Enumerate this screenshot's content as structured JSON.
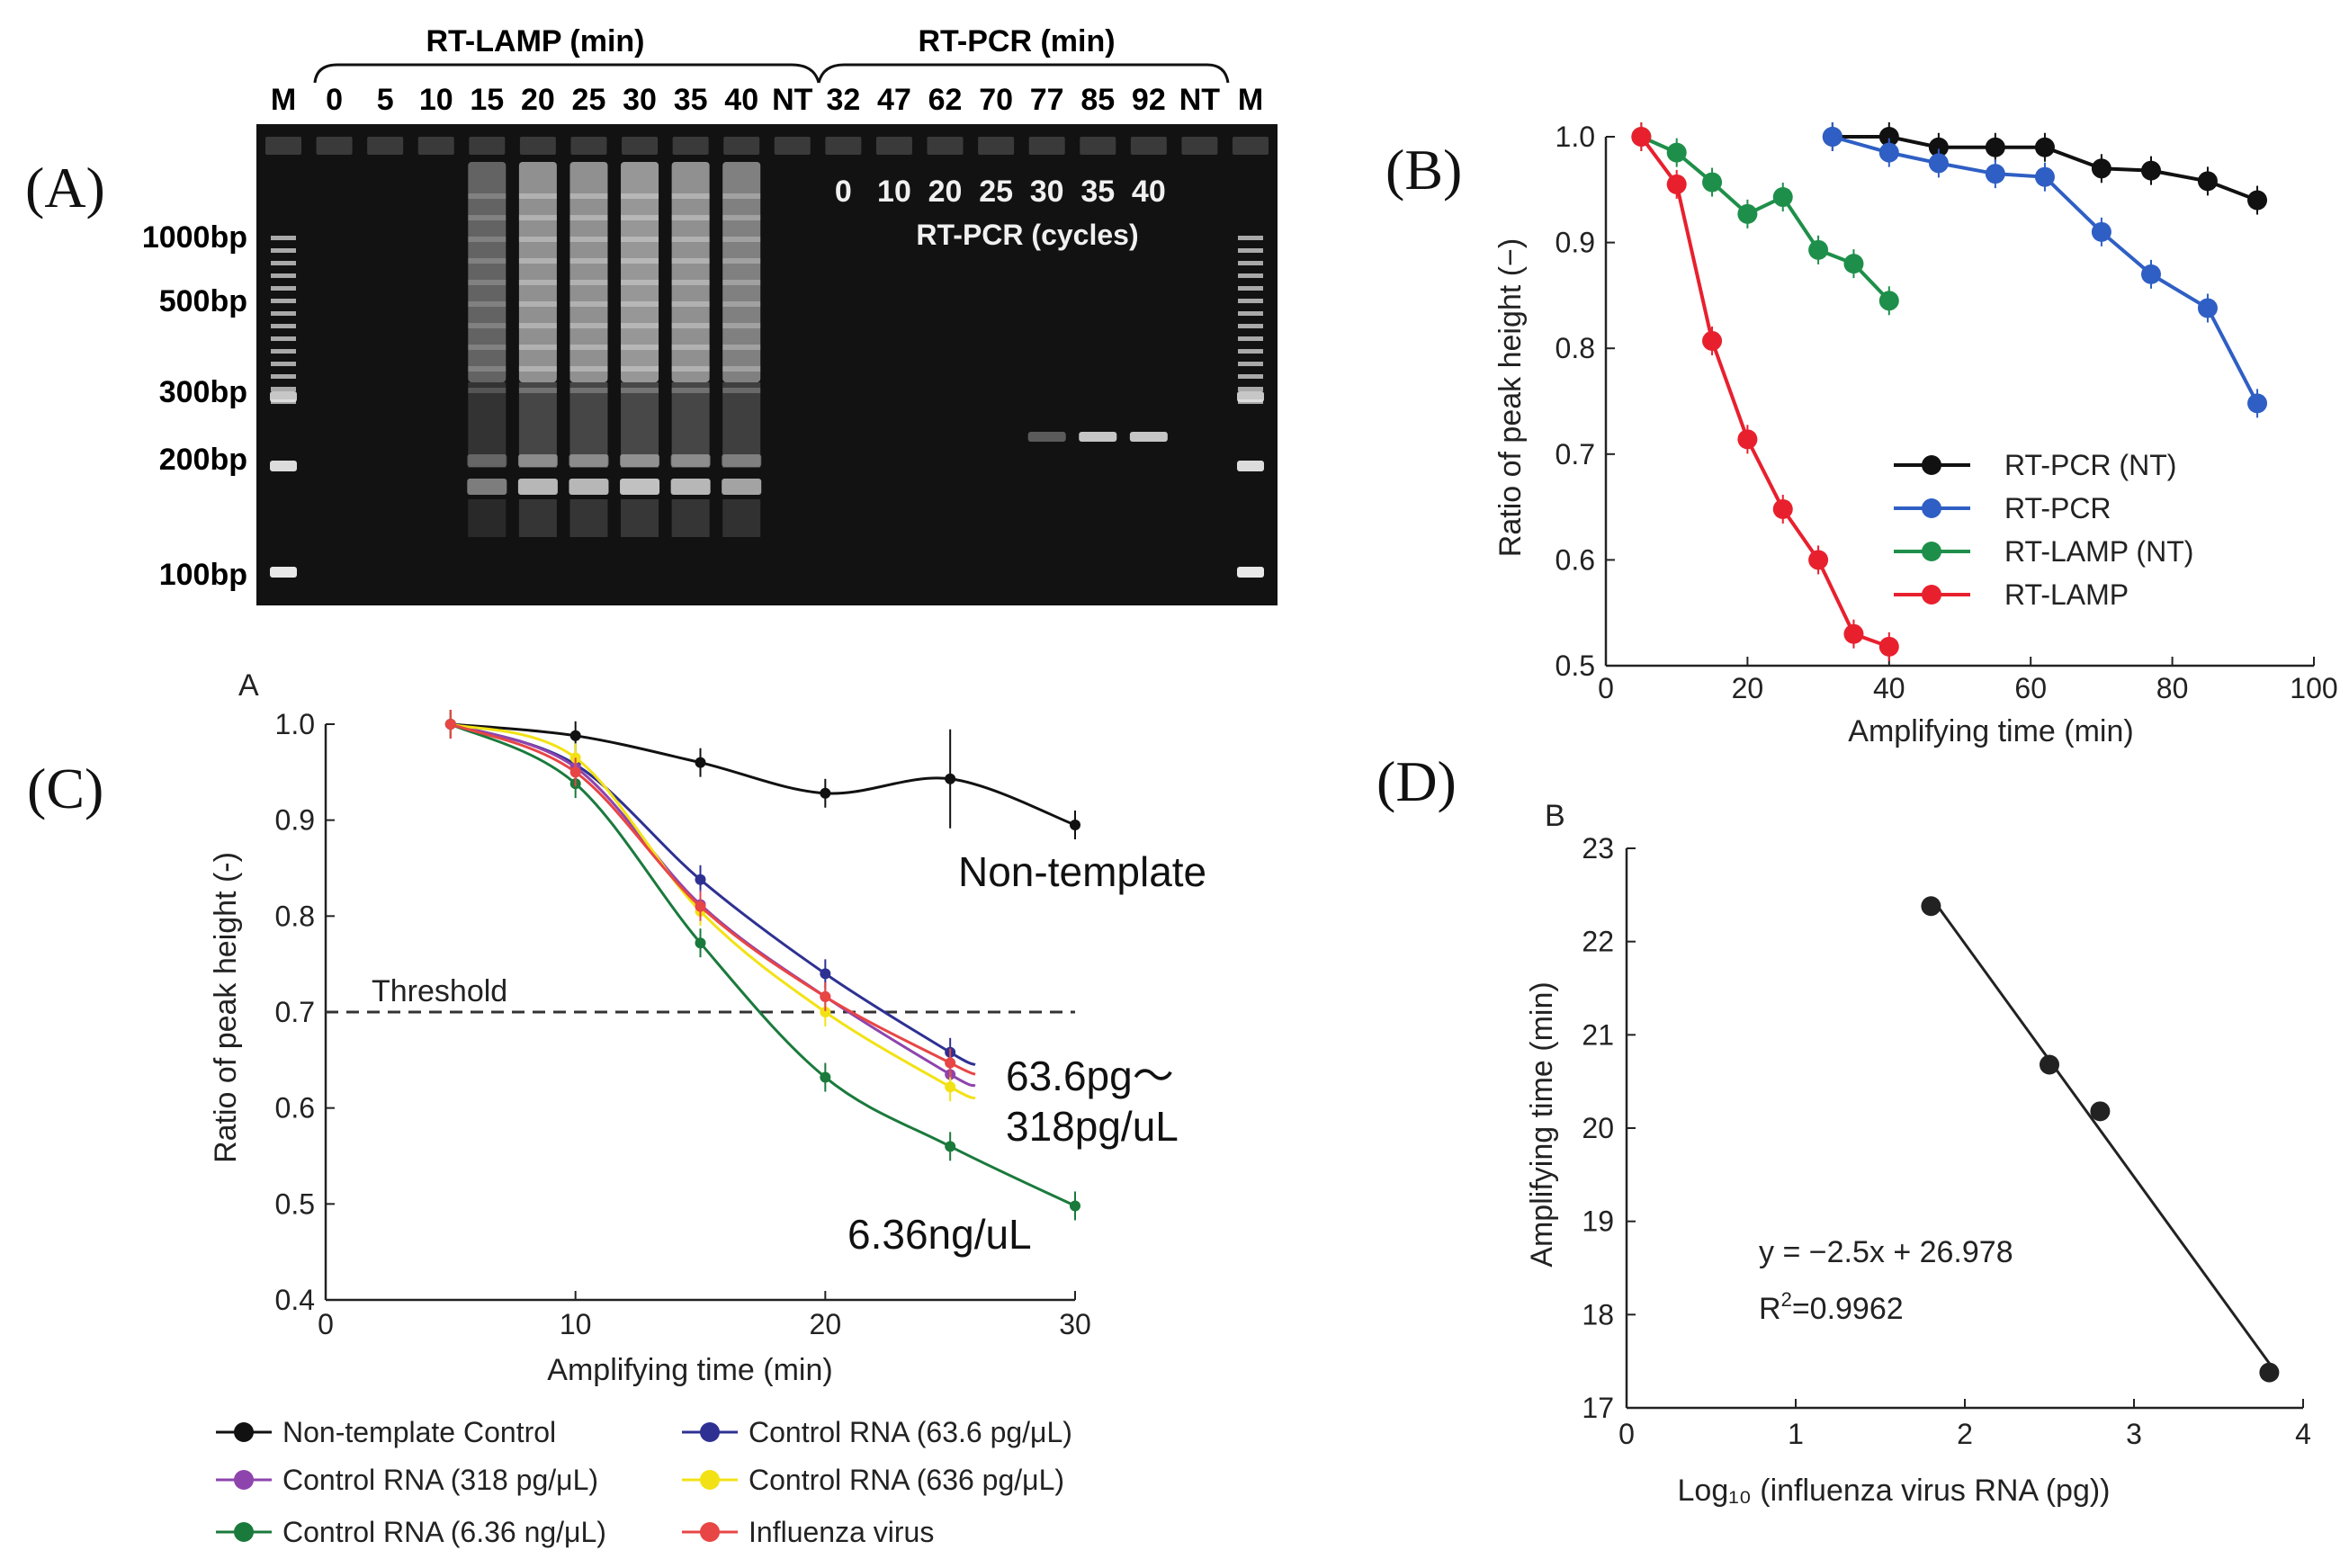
{
  "panel_labels": [
    "(A)",
    "(B)",
    "(C)",
    "(D)"
  ],
  "gel": {
    "lamp_header": "RT-LAMP (min)",
    "pcr_header": "RT-PCR (min)",
    "lanes": [
      "M",
      "0",
      "5",
      "10",
      "15",
      "20",
      "25",
      "30",
      "35",
      "40",
      "NT",
      "32",
      "47",
      "62",
      "70",
      "77",
      "85",
      "92",
      "NT",
      "M"
    ],
    "cycles": [
      "0",
      "10",
      "20",
      "25",
      "30",
      "35",
      "40"
    ],
    "cycles_label": "RT-PCR (cycles)",
    "ladder": [
      "1000bp",
      "500bp",
      "300bp",
      "200bp",
      "100bp"
    ],
    "bg_color": "#121212"
  },
  "chart_data": [
    {
      "panel": "(B)",
      "type": "line",
      "xlabel": "Amplifying time (min)",
      "ylabel": "Ratio of peak height (−)",
      "xlim": [
        0,
        100
      ],
      "ylim": [
        0.5,
        1.0
      ],
      "xticks": [
        "0",
        "20",
        "40",
        "60",
        "80",
        "100"
      ],
      "yticks": [
        "0.5",
        "0.6",
        "0.7",
        "0.8",
        "0.9",
        "1.0"
      ],
      "legend_position": "bottom-right",
      "series": [
        {
          "name": "RT-PCR (NT)",
          "color": "#111111",
          "x": [
            32,
            40,
            47,
            55,
            62,
            70,
            77,
            85,
            92
          ],
          "y": [
            1.0,
            1.0,
            0.99,
            0.99,
            0.99,
            0.97,
            0.968,
            0.958,
            0.94
          ]
        },
        {
          "name": "RT-PCR",
          "color": "#2f5fc4",
          "x": [
            32,
            40,
            47,
            55,
            62,
            70,
            77,
            85,
            92
          ],
          "y": [
            1.0,
            0.985,
            0.975,
            0.965,
            0.962,
            0.91,
            0.87,
            0.838,
            0.748
          ]
        },
        {
          "name": "RT-LAMP (NT)",
          "color": "#1e8f4a",
          "x": [
            5,
            10,
            15,
            20,
            25,
            30,
            35,
            40
          ],
          "y": [
            1.0,
            0.985,
            0.957,
            0.927,
            0.943,
            0.893,
            0.88,
            0.845
          ]
        },
        {
          "name": "RT-LAMP",
          "color": "#e8202e",
          "x": [
            5,
            10,
            15,
            20,
            25,
            30,
            35,
            40
          ],
          "y": [
            1.0,
            0.955,
            0.807,
            0.714,
            0.648,
            0.6,
            0.53,
            0.518
          ]
        }
      ]
    },
    {
      "panel": "(C)",
      "type": "line",
      "corner_label": "A",
      "xlabel": "Amplifying time (min)",
      "ylabel": "Ratio of peak height (-)",
      "xlim": [
        0,
        30
      ],
      "ylim": [
        0.4,
        1.0
      ],
      "xticks": [
        "0",
        "10",
        "20",
        "30"
      ],
      "yticks": [
        "0.4",
        "0.5",
        "0.6",
        "0.7",
        "0.8",
        "0.9",
        "1.0"
      ],
      "threshold": {
        "y": 0.7,
        "label": "Threshold"
      },
      "annotations": [
        "Non-template",
        "63.6pg～",
        "318pg/uL",
        "6.36ng/uL"
      ],
      "series": [
        {
          "name": "Non-template Control",
          "color": "#111111",
          "x": [
            5,
            10,
            15,
            20,
            25,
            30
          ],
          "y": [
            1.0,
            0.988,
            0.96,
            0.928,
            0.943,
            0.895
          ]
        },
        {
          "name": "Control RNA (63.6 pg/μL)",
          "color": "#2e3192",
          "x": [
            5,
            10,
            15,
            20,
            25,
            26
          ],
          "y": [
            1.0,
            0.958,
            0.838,
            0.74,
            0.658,
            0.645
          ]
        },
        {
          "name": "Control RNA (318 pg/μL)",
          "color": "#8e44ad",
          "x": [
            5,
            10,
            15,
            20,
            25,
            26
          ],
          "y": [
            1.0,
            0.955,
            0.812,
            0.716,
            0.635,
            0.623
          ]
        },
        {
          "name": "Control RNA (636 pg/μL)",
          "color": "#f2e215",
          "x": [
            5,
            10,
            15,
            20,
            25,
            26
          ],
          "y": [
            1.0,
            0.965,
            0.805,
            0.7,
            0.622,
            0.61
          ]
        },
        {
          "name": "Control RNA (6.36 ng/μL)",
          "color": "#1a7a3c",
          "x": [
            5,
            10,
            15,
            20,
            25,
            30
          ],
          "y": [
            1.0,
            0.938,
            0.772,
            0.632,
            0.56,
            0.498
          ]
        },
        {
          "name": "Influenza virus",
          "color": "#e84545",
          "x": [
            5,
            10,
            15,
            20,
            25,
            26
          ],
          "y": [
            1.0,
            0.95,
            0.81,
            0.716,
            0.647,
            0.635
          ]
        }
      ]
    },
    {
      "panel": "(D)",
      "type": "scatter",
      "corner_label": "B",
      "xlabel": "Log₁₀ (influenza virus RNA (pg))",
      "ylabel": "Amplifying time (min)",
      "xlim": [
        0,
        4
      ],
      "ylim": [
        17,
        23
      ],
      "xticks": [
        "0",
        "1",
        "2",
        "3",
        "4"
      ],
      "yticks": [
        "17",
        "18",
        "19",
        "20",
        "21",
        "22",
        "23"
      ],
      "equation": "y =  −2.5x + 26.978",
      "r2_label": "R",
      "r2_sup": "2",
      "r2_value": "=0.9962",
      "fit": {
        "slope": -2.5,
        "intercept": 26.978
      },
      "series": [
        {
          "name": "",
          "color": "#222222",
          "x": [
            1.8,
            2.5,
            2.8,
            3.8
          ],
          "y": [
            22.38,
            20.68,
            20.18,
            17.38
          ]
        }
      ]
    }
  ]
}
